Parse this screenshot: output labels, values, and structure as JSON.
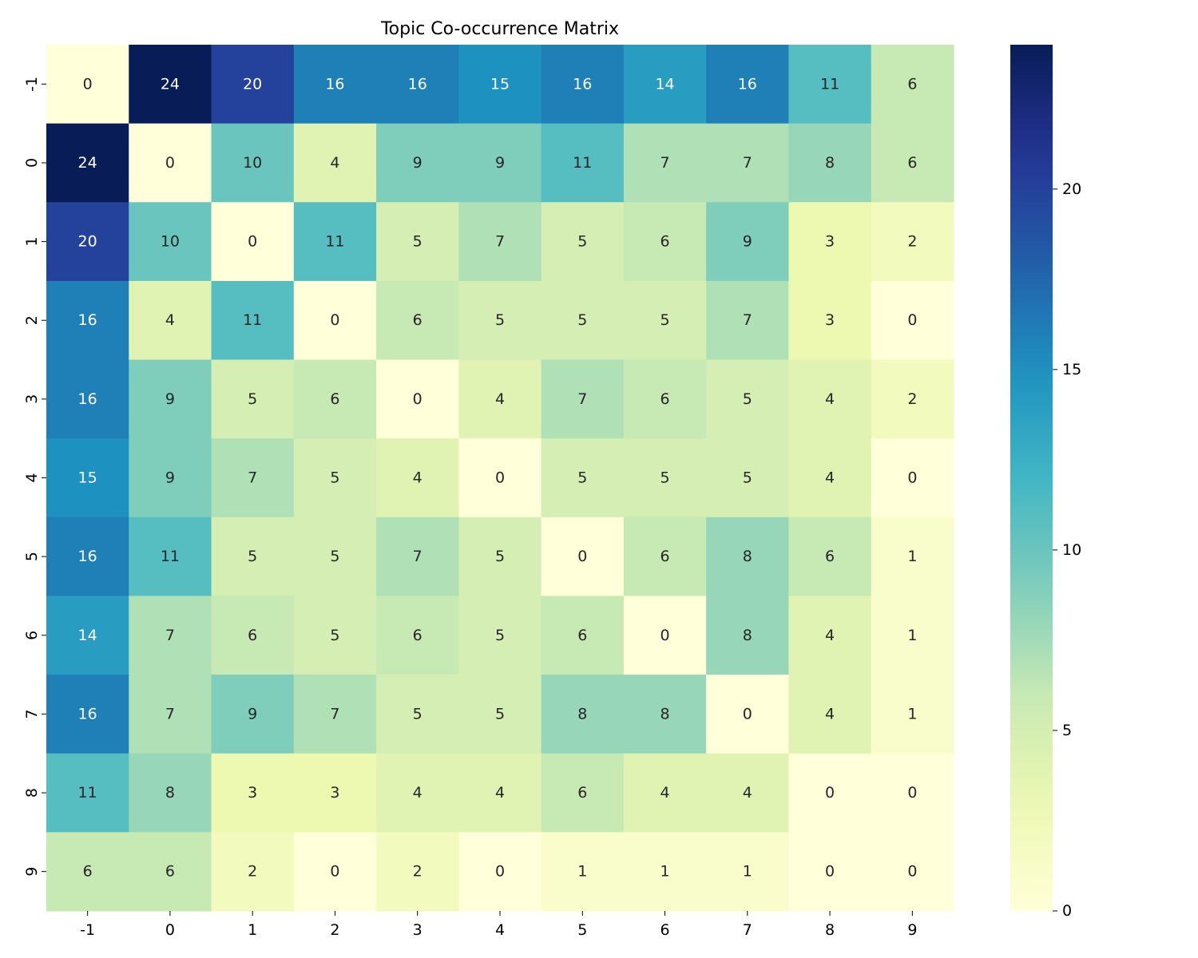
{
  "chart_data": {
    "type": "heatmap",
    "title": "Topic Co-occurrence Matrix",
    "xlabel": "",
    "ylabel": "",
    "x_labels": [
      "-1",
      "0",
      "1",
      "2",
      "3",
      "4",
      "5",
      "6",
      "7",
      "8",
      "9"
    ],
    "y_labels": [
      "-1",
      "0",
      "1",
      "2",
      "3",
      "4",
      "5",
      "6",
      "7",
      "8",
      "9"
    ],
    "values": [
      [
        0,
        24,
        20,
        16,
        16,
        15,
        16,
        14,
        16,
        11,
        6
      ],
      [
        24,
        0,
        10,
        4,
        9,
        9,
        11,
        7,
        7,
        8,
        6
      ],
      [
        20,
        10,
        0,
        11,
        5,
        7,
        5,
        6,
        9,
        3,
        2
      ],
      [
        16,
        4,
        11,
        0,
        6,
        5,
        5,
        5,
        7,
        3,
        0
      ],
      [
        16,
        9,
        5,
        6,
        0,
        4,
        7,
        6,
        5,
        4,
        2
      ],
      [
        15,
        9,
        7,
        5,
        4,
        0,
        5,
        5,
        5,
        4,
        0
      ],
      [
        16,
        11,
        5,
        5,
        7,
        5,
        0,
        6,
        8,
        6,
        1
      ],
      [
        14,
        7,
        6,
        5,
        6,
        5,
        6,
        0,
        8,
        4,
        1
      ],
      [
        16,
        7,
        9,
        7,
        5,
        5,
        8,
        8,
        0,
        4,
        1
      ],
      [
        11,
        8,
        3,
        3,
        4,
        4,
        6,
        4,
        4,
        0,
        0
      ],
      [
        6,
        6,
        2,
        0,
        2,
        0,
        1,
        1,
        1,
        0,
        0
      ]
    ],
    "annotate": true,
    "colormap": "YlGnBu",
    "vmin": 0,
    "vmax": 24,
    "colorbar_ticks": [
      0,
      5,
      10,
      15,
      20
    ],
    "grid": false
  }
}
